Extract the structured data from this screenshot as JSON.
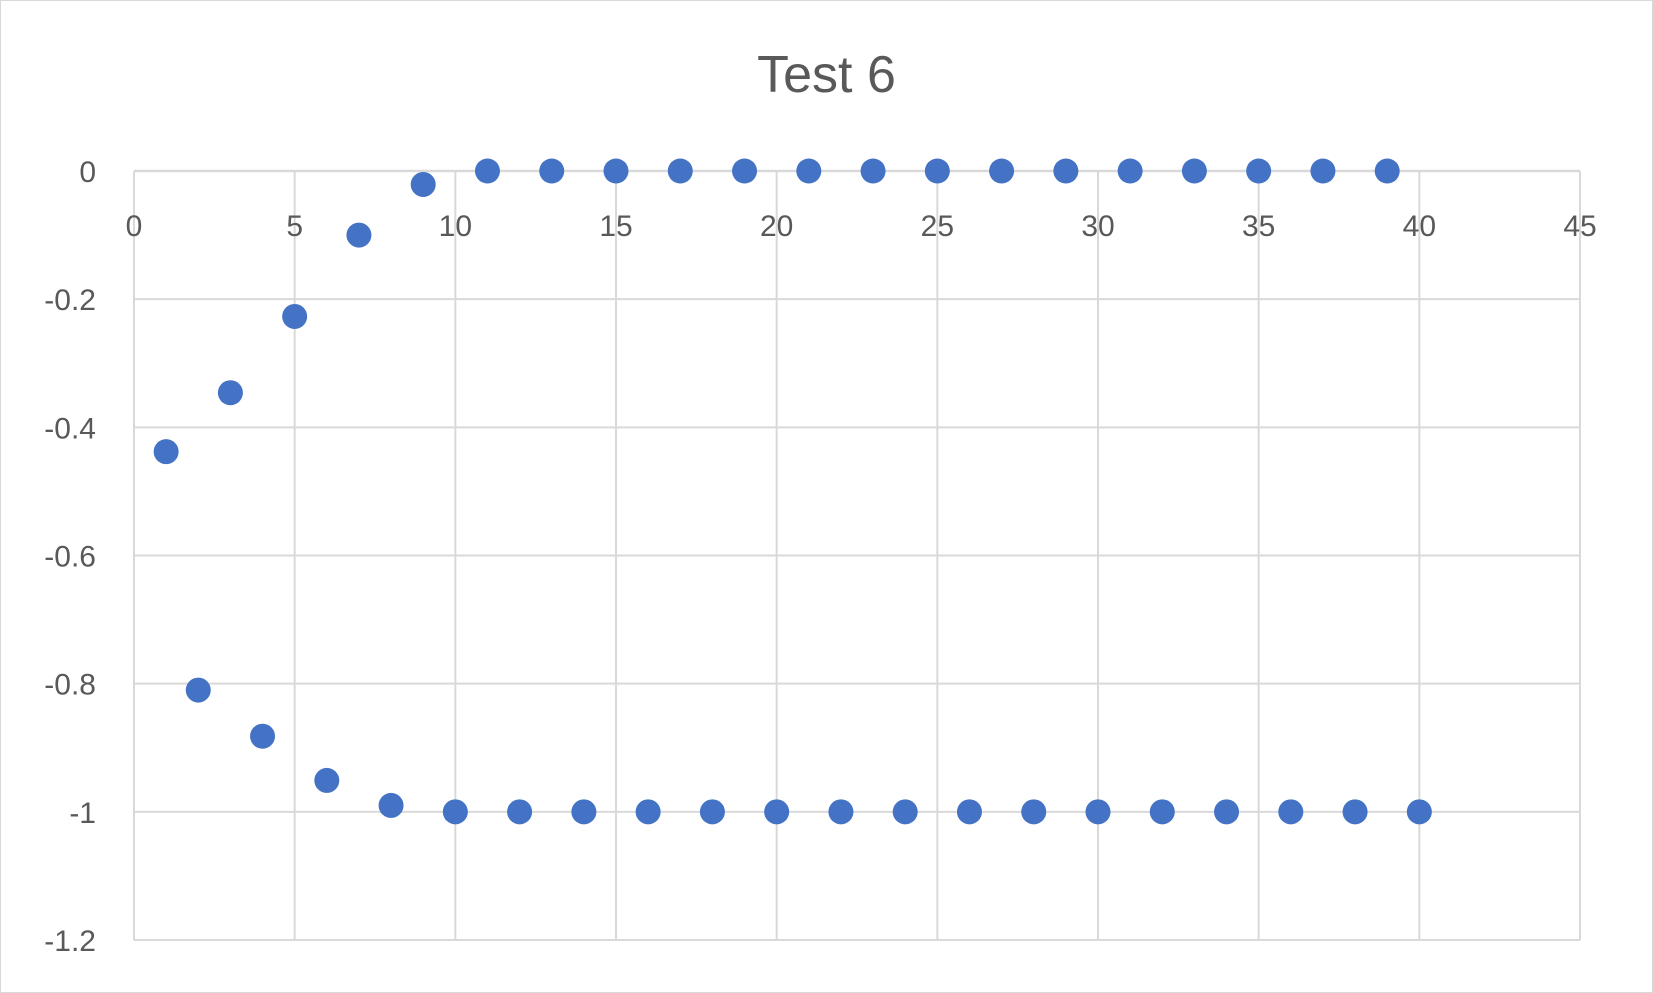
{
  "chart_data": {
    "type": "scatter",
    "title": "Test 6",
    "xlabel": "",
    "ylabel": "",
    "xlim": [
      0,
      45
    ],
    "ylim": [
      -1.2,
      0
    ],
    "x_ticks": [
      0,
      5,
      10,
      15,
      20,
      25,
      30,
      35,
      40,
      45
    ],
    "y_ticks": [
      0,
      -0.2,
      -0.4,
      -0.6,
      -0.8,
      -1,
      -1.2
    ],
    "x_tick_labels": [
      "0",
      "5",
      "10",
      "15",
      "20",
      "25",
      "30",
      "35",
      "40",
      "45"
    ],
    "y_tick_labels": [
      "0",
      "-0.2",
      "-0.4",
      "-0.6",
      "-0.8",
      "-1",
      "-1.2"
    ],
    "grid": true,
    "legend": "none",
    "marker_color": "#4472c4",
    "series": [
      {
        "points": [
          {
            "x": 1,
            "y": -0.438
          },
          {
            "x": 2,
            "y": -0.81
          },
          {
            "x": 3,
            "y": -0.346
          },
          {
            "x": 4,
            "y": -0.882
          },
          {
            "x": 5,
            "y": -0.227
          },
          {
            "x": 6,
            "y": -0.951
          },
          {
            "x": 7,
            "y": -0.1
          },
          {
            "x": 8,
            "y": -0.99
          },
          {
            "x": 9,
            "y": -0.021
          },
          {
            "x": 10,
            "y": -1
          },
          {
            "x": 11,
            "y": 0
          },
          {
            "x": 12,
            "y": -1
          },
          {
            "x": 13,
            "y": 0
          },
          {
            "x": 14,
            "y": -1
          },
          {
            "x": 15,
            "y": 0
          },
          {
            "x": 16,
            "y": -1
          },
          {
            "x": 17,
            "y": 0
          },
          {
            "x": 18,
            "y": -1
          },
          {
            "x": 19,
            "y": 0
          },
          {
            "x": 20,
            "y": -1
          },
          {
            "x": 21,
            "y": 0
          },
          {
            "x": 22,
            "y": -1
          },
          {
            "x": 23,
            "y": 0
          },
          {
            "x": 24,
            "y": -1
          },
          {
            "x": 25,
            "y": 0
          },
          {
            "x": 26,
            "y": -1
          },
          {
            "x": 27,
            "y": 0
          },
          {
            "x": 28,
            "y": -1
          },
          {
            "x": 29,
            "y": 0
          },
          {
            "x": 30,
            "y": -1
          },
          {
            "x": 31,
            "y": 0
          },
          {
            "x": 32,
            "y": -1
          },
          {
            "x": 33,
            "y": 0
          },
          {
            "x": 34,
            "y": -1
          },
          {
            "x": 35,
            "y": 0
          },
          {
            "x": 36,
            "y": -1
          },
          {
            "x": 37,
            "y": 0
          },
          {
            "x": 38,
            "y": -1
          },
          {
            "x": 39,
            "y": 0
          },
          {
            "x": 40,
            "y": -1
          }
        ]
      }
    ]
  }
}
